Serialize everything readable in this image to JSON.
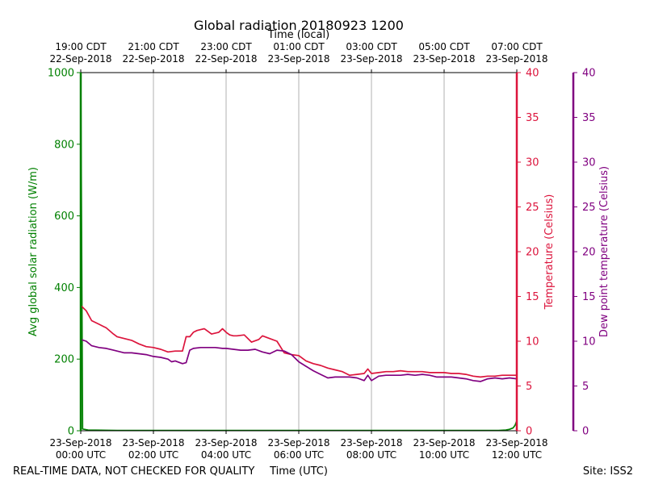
{
  "chart_data": {
    "type": "line",
    "title": "Global radiation 20180923 1200",
    "top_axis_label": "Time (local)",
    "xlabel": "Time (UTC)",
    "footer_left": "REAL-TIME DATA, NOT CHECKED FOR QUALITY",
    "footer_right": "Site: ISS2",
    "xlim_hours_utc": [
      0,
      12
    ],
    "local_ticks": [
      {
        "hour": 0,
        "time": "19:00 CDT",
        "date": "22-Sep-2018"
      },
      {
        "hour": 2,
        "time": "21:00 CDT",
        "date": "22-Sep-2018"
      },
      {
        "hour": 4,
        "time": "23:00 CDT",
        "date": "22-Sep-2018"
      },
      {
        "hour": 6,
        "time": "01:00 CDT",
        "date": "23-Sep-2018"
      },
      {
        "hour": 8,
        "time": "03:00 CDT",
        "date": "23-Sep-2018"
      },
      {
        "hour": 10,
        "time": "05:00 CDT",
        "date": "23-Sep-2018"
      },
      {
        "hour": 12,
        "time": "07:00 CDT",
        "date": "23-Sep-2018"
      }
    ],
    "utc_ticks": [
      {
        "hour": 0,
        "date": "23-Sep-2018",
        "time": "00:00 UTC"
      },
      {
        "hour": 2,
        "date": "23-Sep-2018",
        "time": "02:00 UTC"
      },
      {
        "hour": 4,
        "date": "23-Sep-2018",
        "time": "04:00 UTC"
      },
      {
        "hour": 6,
        "date": "23-Sep-2018",
        "time": "06:00 UTC"
      },
      {
        "hour": 8,
        "date": "23-Sep-2018",
        "time": "08:00 UTC"
      },
      {
        "hour": 10,
        "date": "23-Sep-2018",
        "time": "10:00 UTC"
      },
      {
        "hour": 12,
        "date": "23-Sep-2018",
        "time": "12:00 UTC"
      }
    ],
    "axes": {
      "radiation": {
        "label": "Avg global solar radiation (W/m)",
        "ylim": [
          0,
          1000
        ],
        "ticks": [
          0,
          200,
          400,
          600,
          800,
          1000
        ],
        "color": "#008000"
      },
      "temperature": {
        "label": "Temperature (Celsius)",
        "ylim": [
          0,
          40
        ],
        "ticks": [
          0,
          5,
          10,
          15,
          20,
          25,
          30,
          35,
          40
        ],
        "color": "#dc143c"
      },
      "dewpoint": {
        "label": "Dew point temperature (Celsius)",
        "ylim": [
          0,
          40
        ],
        "ticks": [
          0,
          5,
          10,
          15,
          20,
          25,
          30,
          35,
          40
        ],
        "color": "#800080"
      }
    },
    "series": [
      {
        "name": "Avg global solar radiation",
        "axis": "radiation",
        "color": "#008000",
        "x": [
          0,
          0.05,
          0.2,
          1,
          2,
          4,
          6,
          8,
          10,
          11,
          11.5,
          11.7,
          11.8,
          11.9,
          11.95,
          12
        ],
        "values": [
          1000,
          5,
          2,
          1,
          1,
          1,
          1,
          1,
          1,
          1,
          1,
          2,
          4,
          8,
          15,
          28
        ]
      },
      {
        "name": "Temperature",
        "axis": "temperature",
        "color": "#dc143c",
        "x": [
          0,
          0.15,
          0.3,
          0.5,
          0.7,
          0.9,
          1.0,
          1.2,
          1.4,
          1.6,
          1.8,
          2.0,
          2.2,
          2.4,
          2.6,
          2.8,
          2.9,
          3.0,
          3.1,
          3.2,
          3.3,
          3.4,
          3.6,
          3.8,
          3.9,
          4.0,
          4.1,
          4.2,
          4.3,
          4.5,
          4.7,
          4.9,
          5.0,
          5.2,
          5.4,
          5.6,
          5.8,
          6.0,
          6.2,
          6.4,
          6.6,
          6.8,
          7.0,
          7.2,
          7.4,
          7.6,
          7.8,
          7.9,
          8.0,
          8.2,
          8.4,
          8.6,
          8.8,
          9.0,
          9.2,
          9.4,
          9.6,
          9.8,
          10.0,
          10.2,
          10.4,
          10.6,
          10.8,
          11.0,
          11.2,
          11.4,
          11.6,
          11.8,
          12.0
        ],
        "values": [
          14.0,
          13.4,
          12.3,
          11.9,
          11.5,
          10.8,
          10.5,
          10.3,
          10.1,
          9.7,
          9.4,
          9.3,
          9.1,
          8.8,
          8.9,
          8.9,
          10.5,
          10.5,
          11.0,
          11.2,
          11.3,
          11.4,
          10.8,
          11.0,
          11.4,
          11.0,
          10.7,
          10.6,
          10.6,
          10.7,
          9.9,
          10.2,
          10.6,
          10.3,
          10.0,
          8.7,
          8.5,
          8.4,
          7.8,
          7.5,
          7.3,
          7.0,
          6.8,
          6.6,
          6.2,
          6.3,
          6.4,
          6.9,
          6.4,
          6.5,
          6.6,
          6.6,
          6.7,
          6.6,
          6.6,
          6.6,
          6.5,
          6.5,
          6.5,
          6.4,
          6.4,
          6.3,
          6.1,
          6.0,
          6.1,
          6.1,
          6.2,
          6.2,
          6.2
        ]
      },
      {
        "name": "Dew point temperature",
        "axis": "dewpoint",
        "color": "#800080",
        "x": [
          0,
          0.15,
          0.3,
          0.5,
          0.7,
          0.9,
          1.0,
          1.2,
          1.4,
          1.6,
          1.8,
          2.0,
          2.2,
          2.4,
          2.5,
          2.6,
          2.8,
          2.9,
          3.0,
          3.1,
          3.3,
          3.5,
          3.7,
          3.9,
          4.0,
          4.2,
          4.4,
          4.6,
          4.8,
          5.0,
          5.2,
          5.4,
          5.6,
          5.8,
          6.0,
          6.2,
          6.4,
          6.6,
          6.8,
          7.0,
          7.2,
          7.4,
          7.6,
          7.8,
          7.9,
          8.0,
          8.2,
          8.4,
          8.6,
          8.8,
          9.0,
          9.2,
          9.4,
          9.6,
          9.8,
          10.0,
          10.2,
          10.4,
          10.6,
          10.8,
          11.0,
          11.2,
          11.4,
          11.6,
          11.8,
          12.0
        ],
        "values": [
          10.2,
          10.0,
          9.5,
          9.3,
          9.2,
          9.0,
          8.9,
          8.7,
          8.7,
          8.6,
          8.5,
          8.3,
          8.2,
          8.0,
          7.7,
          7.8,
          7.5,
          7.6,
          9.0,
          9.2,
          9.3,
          9.3,
          9.3,
          9.2,
          9.2,
          9.1,
          9.0,
          9.0,
          9.1,
          8.8,
          8.6,
          9.0,
          8.9,
          8.5,
          7.7,
          7.2,
          6.7,
          6.3,
          5.9,
          6.0,
          6.0,
          6.0,
          5.9,
          5.6,
          6.2,
          5.6,
          6.1,
          6.2,
          6.2,
          6.2,
          6.3,
          6.2,
          6.3,
          6.2,
          6.0,
          6.0,
          6.0,
          5.9,
          5.8,
          5.6,
          5.5,
          5.8,
          5.9,
          5.8,
          5.9,
          5.8
        ]
      }
    ]
  }
}
